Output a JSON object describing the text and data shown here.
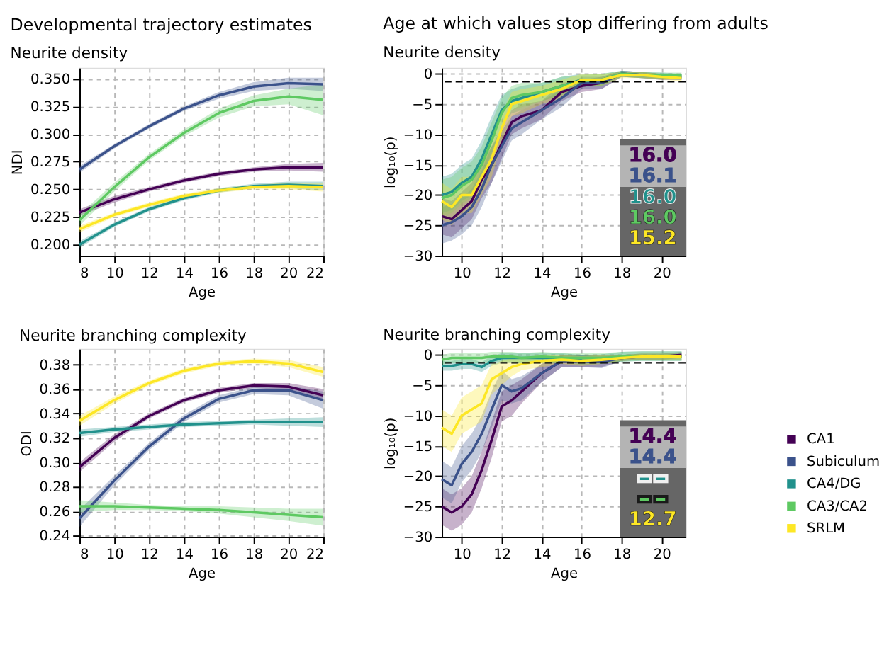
{
  "chart_data": [
    {
      "type": "line",
      "title": "Developmental trajectory estimates",
      "subtitle": "Neurite density",
      "xlabel": "Age",
      "ylabel": "NDI",
      "xlim": [
        8,
        22
      ],
      "xticks": [
        8,
        10,
        12,
        14,
        16,
        18,
        20,
        22
      ],
      "ylim": [
        0.19,
        0.36
      ],
      "yticks": [
        {
          "value": 0.2,
          "label": "0.200"
        },
        {
          "value": 0.225,
          "label": "0.225"
        },
        {
          "value": 0.25,
          "label": "0.250"
        },
        {
          "value": 0.275,
          "label": "0.275"
        },
        {
          "value": 0.3,
          "label": "0.300"
        },
        {
          "value": 0.325,
          "label": "0.325"
        },
        {
          "value": 0.35,
          "label": "0.350"
        }
      ],
      "grid": true,
      "legend": "right",
      "x": [
        8,
        10,
        12,
        14,
        16,
        18,
        20,
        22
      ],
      "series": [
        {
          "name": "CA1",
          "color": "#440154",
          "values": [
            0.229,
            0.241,
            0.25,
            0.258,
            0.264,
            0.268,
            0.27,
            0.27
          ],
          "lower": [
            0.226,
            0.238,
            0.248,
            0.256,
            0.262,
            0.266,
            0.267,
            0.266
          ],
          "upper": [
            0.232,
            0.244,
            0.252,
            0.26,
            0.266,
            0.27,
            0.273,
            0.274
          ]
        },
        {
          "name": "Subiculum",
          "color": "#3b528b",
          "values": [
            0.268,
            0.289,
            0.307,
            0.323,
            0.335,
            0.343,
            0.346,
            0.345
          ],
          "lower": [
            0.265,
            0.287,
            0.305,
            0.321,
            0.332,
            0.339,
            0.341,
            0.339
          ],
          "upper": [
            0.271,
            0.291,
            0.309,
            0.325,
            0.338,
            0.347,
            0.351,
            0.351
          ]
        },
        {
          "name": "CA4/DG",
          "color": "#21918c",
          "values": [
            0.2,
            0.218,
            0.232,
            0.242,
            0.249,
            0.253,
            0.254,
            0.253
          ],
          "lower": [
            0.197,
            0.216,
            0.23,
            0.24,
            0.247,
            0.251,
            0.251,
            0.249
          ],
          "upper": [
            0.203,
            0.22,
            0.234,
            0.244,
            0.251,
            0.255,
            0.257,
            0.257
          ]
        },
        {
          "name": "CA3/CA2",
          "color": "#5ec962",
          "values": [
            0.222,
            0.252,
            0.279,
            0.301,
            0.319,
            0.33,
            0.334,
            0.331
          ],
          "lower": [
            0.217,
            0.248,
            0.276,
            0.298,
            0.315,
            0.325,
            0.327,
            0.317
          ],
          "upper": [
            0.227,
            0.256,
            0.282,
            0.304,
            0.323,
            0.335,
            0.341,
            0.345
          ]
        },
        {
          "name": "SRLM",
          "color": "#fde725",
          "values": [
            0.214,
            0.227,
            0.236,
            0.244,
            0.249,
            0.252,
            0.253,
            0.252
          ],
          "lower": [
            0.211,
            0.225,
            0.234,
            0.242,
            0.247,
            0.25,
            0.25,
            0.248
          ],
          "upper": [
            0.217,
            0.229,
            0.238,
            0.246,
            0.251,
            0.254,
            0.256,
            0.256
          ]
        }
      ]
    },
    {
      "type": "line",
      "title": "Age at which values stop differing from adults",
      "subtitle": "Neurite density",
      "xlabel": "Age",
      "ylabel": "log₁₀(p)",
      "xlim": [
        9,
        21.2
      ],
      "xticks": [
        10,
        12,
        14,
        16,
        18,
        20
      ],
      "ylim": [
        -30,
        1
      ],
      "yticks": [
        {
          "value": -30,
          "label": "−30"
        },
        {
          "value": -25,
          "label": "−25"
        },
        {
          "value": -20,
          "label": "−20"
        },
        {
          "value": -15,
          "label": "−15"
        },
        {
          "value": -10,
          "label": "−10"
        },
        {
          "value": -5,
          "label": "−5"
        },
        0
      ],
      "grid": true,
      "ref_lines": [
        {
          "axis": "y",
          "value": -1.3,
          "color": "#000000",
          "line_style": "dashed"
        }
      ],
      "annotations": [
        "16.0",
        "16.1",
        "16.0",
        "16.0",
        "15.2"
      ],
      "x": [
        9,
        9.5,
        10,
        10.5,
        11,
        11.5,
        12,
        12.5,
        13,
        14,
        15,
        16,
        17,
        18,
        19,
        20,
        21
      ],
      "series": [
        {
          "color": "#440154",
          "values": [
            -23.5,
            -24,
            -22.5,
            -21,
            -17.5,
            -15,
            -11.5,
            -8,
            -7,
            -6,
            -3,
            -2,
            -1.5,
            0,
            -0.2,
            null,
            null
          ],
          "lower": [
            -26.5,
            -27,
            -25.5,
            -24,
            -20.5,
            -18,
            -14,
            -10,
            -9,
            -7.5,
            -4.5,
            -3,
            -2.5,
            -0.5,
            -0.7,
            -1,
            -1
          ],
          "upper": [
            -20.5,
            -21,
            -19.5,
            -18,
            -14.5,
            -12,
            -9,
            -6,
            -5,
            -4.5,
            -1.5,
            -1,
            -0.5,
            0.5,
            0.3,
            0,
            0
          ]
        },
        {
          "color": "#3b528b",
          "values": [
            -25,
            -24.5,
            -23.5,
            -22,
            -19,
            -15,
            -12,
            -9,
            -8,
            -6,
            -4,
            -1.5,
            -1.5,
            0,
            -0.2,
            null,
            null
          ],
          "lower": [
            -28,
            -27.5,
            -26.5,
            -25,
            -22,
            -18,
            -14.5,
            -11,
            -10,
            -7.5,
            -5.5,
            -2.5,
            -2.5,
            -0.5,
            -0.7,
            -1,
            -1
          ],
          "upper": [
            -22,
            -21.5,
            -20.5,
            -19,
            -16,
            -12,
            -9.5,
            -7,
            -6,
            -4.5,
            -2.5,
            -0.5,
            -0.5,
            0.5,
            0.3,
            0,
            0
          ]
        },
        {
          "color": "#21918c",
          "values": [
            -20,
            -19.5,
            -18,
            -17,
            -14,
            -10,
            -6,
            -4.5,
            -4,
            -3,
            -2,
            -1,
            -1,
            0,
            -0.2,
            -0.3,
            -0.5
          ],
          "lower": [
            -23,
            -22.5,
            -21,
            -20,
            -17,
            -13,
            -8.5,
            -6.5,
            -6,
            -4.5,
            -3.5,
            -2,
            -2,
            -0.5,
            -0.7,
            -0.8,
            -1
          ],
          "upper": [
            -17,
            -16.5,
            -15,
            -14,
            -11,
            -7,
            -3.5,
            -2.5,
            -2,
            -1.5,
            -0.5,
            0,
            0,
            0.5,
            0.3,
            0.2,
            0
          ]
        },
        {
          "color": "#5ec962",
          "values": [
            -20.5,
            -20,
            -18.5,
            -17.5,
            -15,
            -11,
            -6.5,
            -4,
            -3.5,
            -3,
            -2,
            -1.2,
            -1,
            0,
            -0.2,
            -0.3,
            -0.3
          ],
          "lower": [
            -23.5,
            -23,
            -21.5,
            -20.5,
            -18,
            -14,
            -9,
            -6,
            -5.5,
            -4.5,
            -3.5,
            -2.2,
            -2,
            -0.5,
            -0.7,
            -0.8,
            -0.8
          ],
          "upper": [
            -17.5,
            -17,
            -15.5,
            -14.5,
            -12,
            -8,
            -4,
            -2,
            -1.5,
            -1.5,
            -0.5,
            -0.2,
            0,
            0.5,
            0.3,
            0.2,
            0.2
          ]
        },
        {
          "color": "#fde725",
          "values": [
            -21,
            -22,
            -20,
            -20,
            -17,
            -14,
            -9,
            -5,
            -4.5,
            -3.5,
            -2.5,
            -1,
            -1,
            -0.2,
            -0.2,
            -0.5,
            -0.7
          ],
          "lower": [
            -24,
            -25,
            -23,
            -23,
            -20,
            -17,
            -11.5,
            -7,
            -6.5,
            -5,
            -4,
            -2,
            -2,
            -0.7,
            -0.7,
            -1,
            -1.2
          ],
          "upper": [
            -18,
            -19,
            -17,
            -17,
            -14,
            -11,
            -6.5,
            -3,
            -2.5,
            -2,
            -1,
            0,
            0,
            0.3,
            0.3,
            0,
            -0.2
          ]
        }
      ]
    },
    {
      "type": "line",
      "title": "Neurite branching complexity",
      "xlabel": "Age",
      "ylabel": "ODI",
      "xlim": [
        8,
        22
      ],
      "xticks": [
        8,
        10,
        12,
        14,
        16,
        18,
        20,
        22
      ],
      "ylim": [
        0.239,
        0.393
      ],
      "yticks": [
        {
          "value": 0.24,
          "label": "0.24"
        },
        {
          "value": 0.26,
          "label": "0.26"
        },
        {
          "value": 0.28,
          "label": "0.28"
        },
        {
          "value": 0.3,
          "label": "0.30"
        },
        {
          "value": 0.32,
          "label": "0.32"
        },
        {
          "value": 0.34,
          "label": "0.34"
        },
        {
          "value": 0.36,
          "label": "0.36"
        },
        {
          "value": 0.38,
          "label": "0.38"
        }
      ],
      "grid": true,
      "x": [
        8,
        10,
        12,
        14,
        16,
        18,
        20,
        22
      ],
      "series": [
        {
          "color": "#440154",
          "values": [
            0.296,
            0.32,
            0.338,
            0.351,
            0.359,
            0.363,
            0.362,
            0.355
          ],
          "lower": [
            0.292,
            0.317,
            0.336,
            0.349,
            0.357,
            0.361,
            0.359,
            0.35
          ],
          "upper": [
            0.3,
            0.323,
            0.34,
            0.353,
            0.361,
            0.365,
            0.365,
            0.36
          ]
        },
        {
          "color": "#3b528b",
          "values": [
            0.254,
            0.285,
            0.313,
            0.336,
            0.352,
            0.359,
            0.359,
            0.351
          ],
          "lower": [
            0.247,
            0.281,
            0.31,
            0.333,
            0.349,
            0.356,
            0.355,
            0.344
          ],
          "upper": [
            0.261,
            0.289,
            0.316,
            0.339,
            0.355,
            0.362,
            0.363,
            0.358
          ]
        },
        {
          "color": "#21918c",
          "values": [
            0.324,
            0.327,
            0.329,
            0.331,
            0.332,
            0.333,
            0.333,
            0.333
          ],
          "lower": [
            0.321,
            0.325,
            0.327,
            0.329,
            0.33,
            0.331,
            0.33,
            0.329
          ],
          "upper": [
            0.327,
            0.329,
            0.331,
            0.333,
            0.334,
            0.335,
            0.336,
            0.337
          ]
        },
        {
          "color": "#5ec962",
          "values": [
            0.264,
            0.264,
            0.263,
            0.262,
            0.261,
            0.259,
            0.257,
            0.255
          ],
          "lower": [
            0.259,
            0.261,
            0.261,
            0.26,
            0.258,
            0.255,
            0.252,
            0.248
          ],
          "upper": [
            0.269,
            0.267,
            0.265,
            0.264,
            0.264,
            0.263,
            0.262,
            0.262
          ]
        },
        {
          "color": "#fde725",
          "values": [
            0.334,
            0.351,
            0.365,
            0.375,
            0.381,
            0.383,
            0.381,
            0.374
          ],
          "lower": [
            0.33,
            0.348,
            0.363,
            0.373,
            0.379,
            0.381,
            0.378,
            0.37
          ],
          "upper": [
            0.338,
            0.354,
            0.367,
            0.377,
            0.383,
            0.385,
            0.384,
            0.378
          ]
        }
      ]
    },
    {
      "type": "line",
      "title": "Neurite branching complexity",
      "xlabel": "Age",
      "ylabel": "log₁₀(p)",
      "xlim": [
        9,
        21.2
      ],
      "xticks": [
        10,
        12,
        14,
        16,
        18,
        20
      ],
      "ylim": [
        -30,
        1
      ],
      "yticks": [
        {
          "value": -30,
          "label": "−30"
        },
        {
          "value": -25,
          "label": "−25"
        },
        {
          "value": -20,
          "label": "−20"
        },
        {
          "value": -15,
          "label": "−15"
        },
        {
          "value": -10,
          "label": "−10"
        },
        {
          "value": -5,
          "label": "−5"
        },
        0
      ],
      "grid": true,
      "ref_lines": [
        {
          "axis": "y",
          "value": -1.3,
          "color": "#000000",
          "line_style": "dashed"
        }
      ],
      "annotations": [
        "14.4",
        "14.4",
        "--",
        "--",
        "12.7"
      ],
      "x": [
        9,
        9.5,
        10,
        10.5,
        11,
        11.5,
        12,
        12.5,
        13,
        14,
        15,
        16,
        17,
        18,
        19,
        20,
        21
      ],
      "series": [
        {
          "color": "#440154",
          "values": [
            -25,
            -26,
            -25,
            -23,
            -19,
            -14,
            -8.5,
            -7.5,
            -6,
            -3,
            -1,
            -1,
            -1,
            -0.5,
            -0.3,
            -0.3,
            0
          ],
          "lower": [
            -28,
            -29,
            -28,
            -26,
            -22,
            -17,
            -11,
            -10,
            -8,
            -4.5,
            -2,
            -2,
            -2,
            -1,
            -0.8,
            -0.8,
            -0.5
          ],
          "upper": [
            -22,
            -23,
            -22,
            -20,
            -16,
            -11,
            -6,
            -5,
            -4,
            -1.5,
            0,
            0,
            0,
            0,
            0.2,
            0.2,
            0.5
          ]
        },
        {
          "color": "#3b528b",
          "values": [
            -20.5,
            -21.5,
            -18,
            -16,
            -13,
            -9,
            -5,
            -6,
            -5.5,
            -3,
            -1,
            -1,
            -1.2,
            -0.5,
            -0.3,
            -0.3,
            -0.3
          ],
          "lower": [
            -23.5,
            -24.5,
            -21,
            -19,
            -16,
            -12,
            -7.5,
            -8,
            -7.5,
            -4.5,
            -2,
            -2,
            -2.2,
            -1,
            -0.8,
            -0.8,
            -0.8
          ],
          "upper": [
            -17.5,
            -18.5,
            -15,
            -13,
            -10,
            -6,
            -2.5,
            -4,
            -3.5,
            -1.5,
            0,
            0,
            -0.2,
            0,
            0.2,
            0.2,
            0.2
          ]
        },
        {
          "color": "#21918c",
          "values": [
            -1.8,
            -1.8,
            -1.5,
            -1.5,
            -2,
            -1,
            -0.5,
            -0.5,
            -0.5,
            -0.5,
            -0.5,
            -0.8,
            null,
            null,
            null,
            null,
            null
          ],
          "lower": [
            -2.6,
            -2.6,
            -2.3,
            -2.3,
            -2.8,
            -1.8,
            -1.3,
            -1.3,
            -1.3,
            -1.3,
            -1.3,
            -1.6,
            -1.5,
            -1.1,
            -1,
            -1,
            -1
          ],
          "upper": [
            -1,
            -1,
            -0.7,
            -0.7,
            -1.2,
            -0.2,
            0.3,
            0.3,
            0.3,
            0.3,
            0.3,
            0,
            0.1,
            0.5,
            0.6,
            0.6,
            0.6
          ]
        },
        {
          "color": "#5ec962",
          "values": [
            -0.8,
            -0.5,
            -0.5,
            -0.5,
            -0.5,
            -0.3,
            -0.3,
            -0.3,
            -0.5,
            -0.3,
            -0.5,
            -0.5,
            -0.5,
            -0.3,
            -0.2,
            -0.2,
            -0.2
          ],
          "lower": [
            -1.6,
            -1.3,
            -1.3,
            -1.3,
            -1.3,
            -1.1,
            -1.1,
            -1.1,
            -1.3,
            -1.1,
            -1.3,
            -1.3,
            -1.3,
            -1.1,
            -1,
            -1,
            -1
          ],
          "upper": [
            0,
            0.3,
            0.3,
            0.3,
            0.3,
            0.5,
            0.5,
            0.5,
            0.3,
            0.5,
            0.3,
            0.3,
            0.3,
            0.5,
            0.6,
            0.6,
            0.6
          ]
        },
        {
          "color": "#fde725",
          "values": [
            -12,
            -13,
            -10,
            -9,
            -8,
            -4,
            -3,
            -2,
            -1.5,
            -1,
            -0.8,
            -1,
            -0.8,
            -0.5,
            -0.3,
            -0.3,
            -0.3
          ],
          "lower": [
            -15,
            -16,
            -13,
            -12,
            -11,
            -6.5,
            -5,
            -3.5,
            -2.5,
            -2,
            -1.5,
            -1.8,
            -1.5,
            -1,
            -0.8,
            -0.8,
            -0.8
          ],
          "upper": [
            -9,
            -10,
            -7,
            -6,
            -5,
            -1.5,
            -1,
            -0.5,
            -0.5,
            0,
            0,
            -0.2,
            0,
            0,
            0.2,
            0.2,
            0.2
          ]
        }
      ]
    }
  ]
}
